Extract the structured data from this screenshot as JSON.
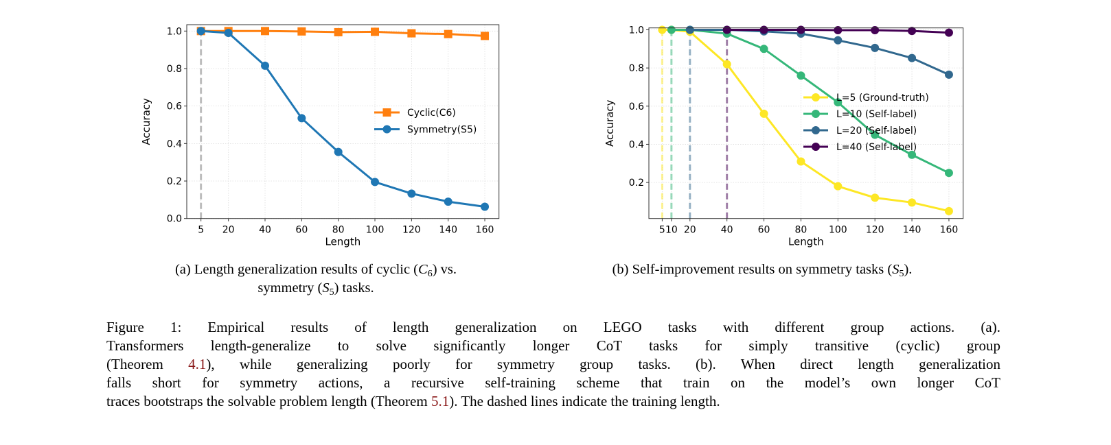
{
  "chart_data": [
    {
      "type": "line",
      "xlabel": "Length",
      "ylabel": "Accuracy",
      "x_ticks": [
        "5",
        "20",
        "40",
        "60",
        "80",
        "100",
        "120",
        "140",
        "160"
      ],
      "x_tick_values": [
        5,
        20,
        40,
        60,
        80,
        100,
        120,
        140,
        160
      ],
      "y_ticks": [
        "0.0",
        "0.2",
        "0.4",
        "0.6",
        "0.8",
        "1.0"
      ],
      "xlim": [
        -2.75,
        167.75
      ],
      "ylim": [
        0.0,
        1.034
      ],
      "grid": true,
      "legend_position": "center-right",
      "train_lengths": [
        {
          "x": 5,
          "color": "#b0b0b0"
        }
      ],
      "series": [
        {
          "name": "Cyclic(C6)",
          "color": "#ff7f0e",
          "marker": "square",
          "x": [
            5,
            20,
            40,
            60,
            80,
            100,
            120,
            140,
            160
          ],
          "y": [
            1.0,
            1.0,
            1.0,
            0.998,
            0.994,
            0.996,
            0.988,
            0.984,
            0.974
          ]
        },
        {
          "name": "Symmetry(S5)",
          "color": "#1f77b4",
          "marker": "circle",
          "x": [
            5,
            20,
            40,
            60,
            80,
            100,
            120,
            140,
            160
          ],
          "y": [
            1.0,
            0.99,
            0.815,
            0.535,
            0.355,
            0.195,
            0.133,
            0.09,
            0.063
          ]
        }
      ]
    },
    {
      "type": "line",
      "xlabel": "Length",
      "ylabel": "Accuracy",
      "x_ticks": [
        "5",
        "10",
        "20",
        "40",
        "60",
        "80",
        "100",
        "120",
        "140",
        "160"
      ],
      "x_tick_values": [
        5,
        10,
        20,
        40,
        60,
        80,
        100,
        120,
        140,
        160
      ],
      "y_ticks": [
        "0.2",
        "0.4",
        "0.6",
        "0.8",
        "1.0"
      ],
      "xlim": [
        -2.2,
        167.7
      ],
      "ylim": [
        0.011,
        1.01
      ],
      "grid": true,
      "legend_position": "center-right",
      "train_lengths": [
        {
          "x": 5,
          "color": "#fde725"
        },
        {
          "x": 10,
          "color": "#35b779"
        },
        {
          "x": 20,
          "color": "#31688e"
        },
        {
          "x": 40,
          "color": "#440154"
        }
      ],
      "series": [
        {
          "name": "L=5 (Ground-truth)",
          "color": "#fde725",
          "marker": "circle",
          "x": [
            5,
            10,
            20,
            40,
            60,
            80,
            100,
            120,
            140,
            160
          ],
          "y": [
            1.0,
            1.0,
            0.99,
            0.82,
            0.56,
            0.31,
            0.18,
            0.12,
            0.095,
            0.05
          ]
        },
        {
          "name": "L=10 (Self-label)",
          "color": "#35b779",
          "marker": "circle",
          "x": [
            10,
            20,
            40,
            60,
            80,
            100,
            120,
            140,
            160
          ],
          "y": [
            1.0,
            1.0,
            0.98,
            0.9,
            0.76,
            0.62,
            0.45,
            0.345,
            0.25
          ]
        },
        {
          "name": "L=20 (Self-label)",
          "color": "#31688e",
          "marker": "circle",
          "x": [
            20,
            40,
            60,
            80,
            100,
            120,
            140,
            160
          ],
          "y": [
            1.0,
            1.0,
            0.992,
            0.98,
            0.945,
            0.905,
            0.852,
            0.765
          ]
        },
        {
          "name": "L=40 (Self-label)",
          "color": "#440154",
          "marker": "circle",
          "x": [
            40,
            60,
            80,
            100,
            120,
            140,
            160
          ],
          "y": [
            1.0,
            1.0,
            1.0,
            0.998,
            0.998,
            0.994,
            0.985
          ]
        }
      ]
    }
  ],
  "subcaptions": {
    "a": {
      "t1": "(a) Length generalization results of cyclic (",
      "m1": "C",
      "s1": "6",
      "t2": ") vs.",
      "t3": "symmetry (",
      "m2": "S",
      "s2": "5",
      "t4": ") tasks."
    },
    "b": {
      "t1": "(b) Self-improvement results on symmetry tasks (",
      "m1": "S",
      "s1": "5",
      "t2": ")."
    }
  },
  "caption": {
    "l1": "Figure 1: Empirical results of length generalization on LEGO tasks with different group actions. (a).",
    "l2": "Transformers length-generalize to solve significantly longer CoT tasks for simply transitive (cyclic) group",
    "l3a": "(Theorem ",
    "ref1": "4.1",
    "l3b": "), while generalizing poorly for symmetry group tasks. (b). When direct length generalization",
    "l4": "falls short for symmetry actions, a recursive self-training scheme that train on the model’s own longer CoT",
    "l5a": "traces bootstraps the solvable problem length (Theorem ",
    "ref2": "5.1",
    "l5b": "). The dashed lines indicate the training length."
  }
}
